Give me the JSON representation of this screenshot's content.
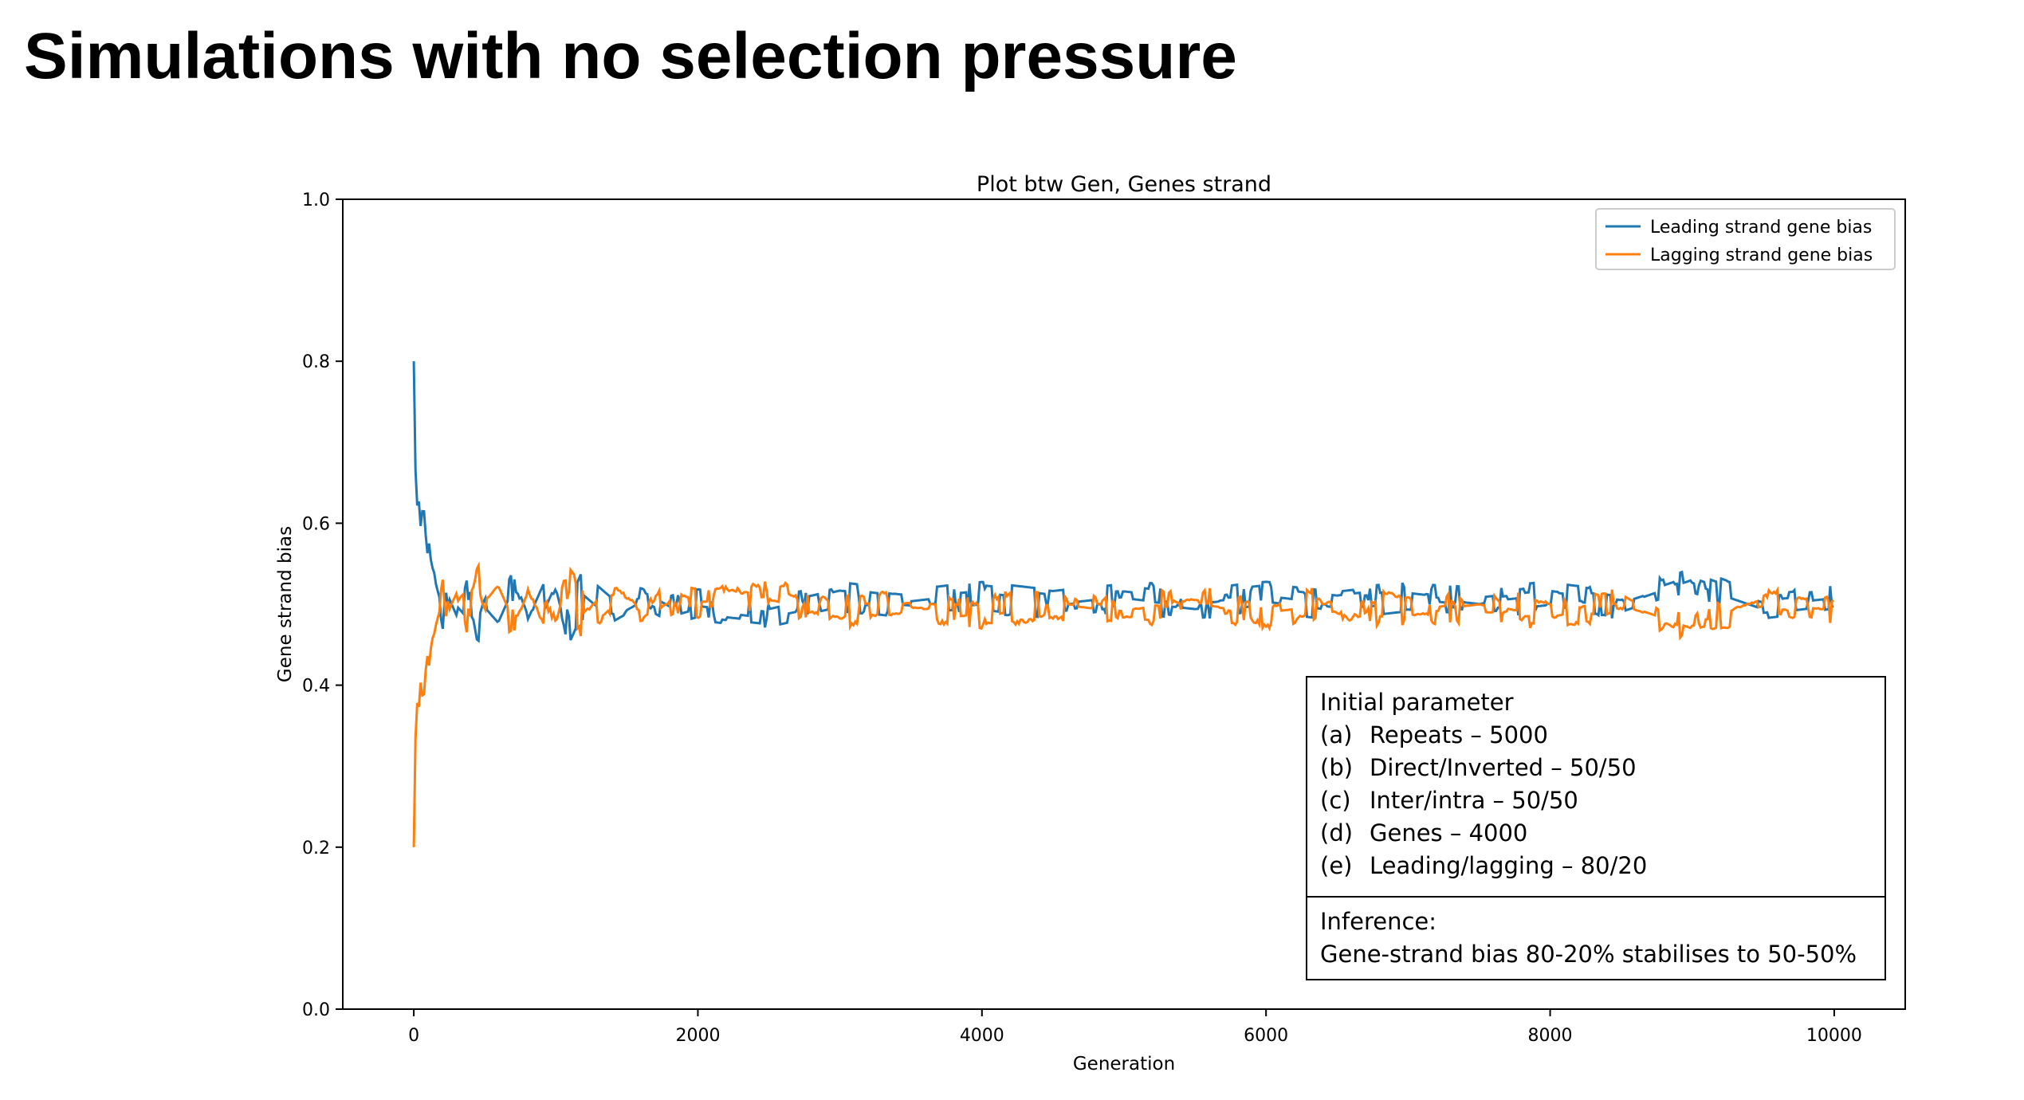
{
  "slide": {
    "title": "Simulations with no selection pressure"
  },
  "chart_data": {
    "type": "line",
    "title": "Plot btw Gen, Genes strand",
    "xlabel": "Generation",
    "ylabel": "Gene strand bias",
    "xlim": [
      -500,
      10500
    ],
    "ylim": [
      0.0,
      1.0
    ],
    "xticks": [
      "0",
      "2000",
      "4000",
      "6000",
      "8000",
      "10000"
    ],
    "yticks": [
      "0.0",
      "0.2",
      "0.4",
      "0.6",
      "0.8",
      "1.0"
    ],
    "grid": false,
    "legend_position": "top-right",
    "series": [
      {
        "name": "Leading strand gene bias",
        "color": "#1f77b4",
        "x": [
          0,
          10,
          20,
          30,
          50,
          70,
          90,
          110,
          130,
          150,
          180,
          210,
          250,
          300,
          350,
          400,
          450,
          500,
          600,
          700,
          800,
          900,
          1000,
          1100,
          1200,
          1400,
          1600,
          1800,
          2000,
          2500,
          3000,
          3500,
          4000,
          4500,
          5000,
          5500,
          6000,
          6500,
          7000,
          7500,
          8000,
          8500,
          9000,
          9500,
          10000
        ],
        "y": [
          0.8,
          0.68,
          0.61,
          0.64,
          0.59,
          0.6,
          0.55,
          0.57,
          0.53,
          0.52,
          0.5,
          0.47,
          0.51,
          0.49,
          0.48,
          0.52,
          0.47,
          0.5,
          0.48,
          0.52,
          0.47,
          0.51,
          0.55,
          0.48,
          0.52,
          0.49,
          0.51,
          0.49,
          0.5,
          0.49,
          0.51,
          0.5,
          0.51,
          0.5,
          0.51,
          0.5,
          0.51,
          0.5,
          0.51,
          0.5,
          0.51,
          0.5,
          0.53,
          0.5,
          0.51
        ]
      },
      {
        "name": "Lagging strand gene bias",
        "color": "#ff7f0e",
        "x": [
          0,
          10,
          20,
          30,
          50,
          70,
          90,
          110,
          130,
          150,
          180,
          210,
          250,
          300,
          350,
          400,
          450,
          500,
          600,
          700,
          800,
          900,
          1000,
          1100,
          1200,
          1400,
          1600,
          1800,
          2000,
          2500,
          3000,
          3500,
          4000,
          4500,
          5000,
          5500,
          6000,
          6500,
          7000,
          7500,
          8000,
          8500,
          9000,
          9500,
          10000
        ],
        "y": [
          0.2,
          0.32,
          0.39,
          0.36,
          0.41,
          0.4,
          0.45,
          0.43,
          0.47,
          0.48,
          0.5,
          0.53,
          0.49,
          0.51,
          0.52,
          0.48,
          0.53,
          0.5,
          0.52,
          0.48,
          0.53,
          0.49,
          0.45,
          0.52,
          0.48,
          0.51,
          0.49,
          0.51,
          0.5,
          0.51,
          0.49,
          0.5,
          0.49,
          0.5,
          0.49,
          0.5,
          0.49,
          0.5,
          0.49,
          0.5,
          0.49,
          0.5,
          0.47,
          0.5,
          0.49
        ]
      }
    ]
  },
  "annotation": {
    "heading": "Initial parameter",
    "params": [
      {
        "key": "(a)",
        "value": "Repeats – 5000"
      },
      {
        "key": "(b)",
        "value": "Direct/Inverted – 50/50"
      },
      {
        "key": "(c)",
        "value": "Inter/intra – 50/50"
      },
      {
        "key": "(d)",
        "value": "Genes – 4000"
      },
      {
        "key": "(e)",
        "value": "Leading/lagging – 80/20"
      }
    ],
    "inference_heading": "Inference:",
    "inference_text": "Gene-strand bias 80-20% stabilises to 50-50%"
  }
}
